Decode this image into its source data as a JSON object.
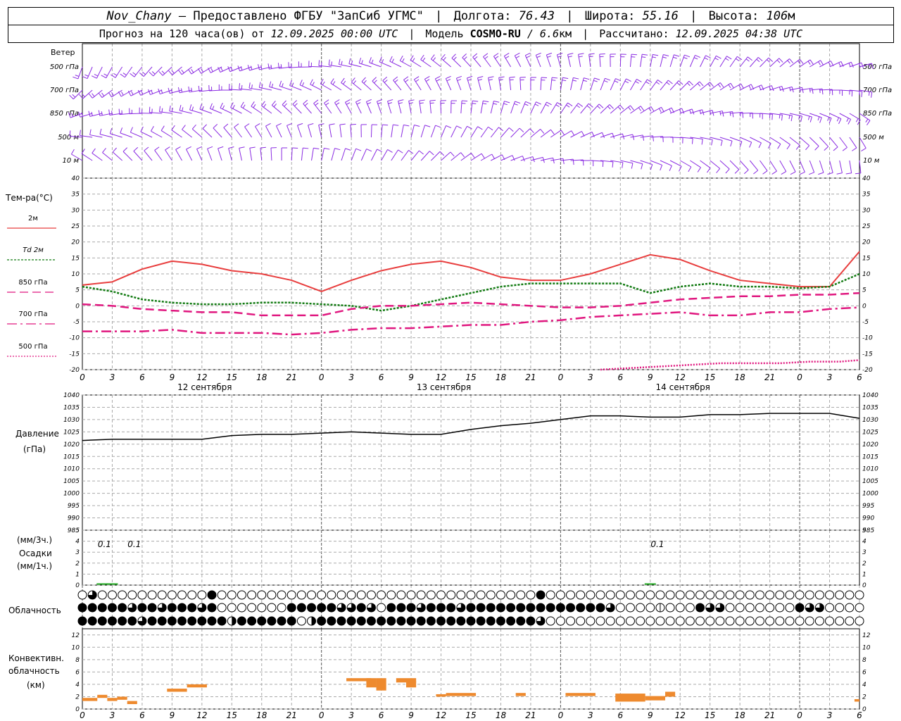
{
  "header": {
    "station": "Nov_Chany",
    "provider": "Предоставлено ФГБУ \"ЗапСиб УГМС\"",
    "lon_label": "Долгота:",
    "lon": "76.43",
    "lat_label": "Широта:",
    "lat": "55.16",
    "alt_label": "Высота:",
    "alt": "106",
    "alt_unit": "м",
    "forecast_label": "Прогноз на 120 часа(ов) от",
    "forecast_start": "12.09.2025 00:00 UTC",
    "model_label": "Модель",
    "model": "COSMO-RU",
    "model_res": "/ 6.6",
    "model_res_unit": "км",
    "computed_label": "Рассчитано:",
    "computed": "12.09.2025 04:38 UTC"
  },
  "wind_panel": {
    "title": "Ветер",
    "levels": [
      "500 гПа",
      "700 гПа",
      "850 гПа",
      "500 м",
      "10  м"
    ],
    "color": "#8a2be2"
  },
  "temp_panel": {
    "title": "Тем-ра(°C)",
    "legend": [
      {
        "label": "2м",
        "color": "#e83e3e"
      },
      {
        "label": "Td  2м",
        "color": "#117a11"
      },
      {
        "label": "850 гПа",
        "color": "#e0177f"
      },
      {
        "label": "700 гПа",
        "color": "#e0177f"
      },
      {
        "label": "500 гПа",
        "color": "#e0177f"
      }
    ],
    "yticks": [
      "40",
      "35",
      "30",
      "25",
      "20",
      "15",
      "10",
      "5",
      "0",
      "-5",
      "-10",
      "-15",
      "-20"
    ]
  },
  "time_axis": {
    "hour_labels": [
      "0",
      "3",
      "6",
      "9",
      "12",
      "15",
      "18",
      "21",
      "0",
      "3",
      "6",
      "9",
      "12",
      "15",
      "18",
      "21",
      "0",
      "3",
      "6",
      "9",
      "12",
      "15",
      "18",
      "21",
      "0",
      "3",
      "6"
    ],
    "day_labels": [
      "12 сентября",
      "13 сентября",
      "14 сентября"
    ]
  },
  "pressure_panel": {
    "title": "Давление",
    "unit": "(гПа)",
    "yticks": [
      "1040",
      "1035",
      "1030",
      "1025",
      "1020",
      "1015",
      "1010",
      "1005",
      "1000",
      "995",
      "990",
      "985"
    ]
  },
  "precip_panel": {
    "unit3": "(мм/3ч.)",
    "title": "Осадки",
    "unit1": "(мм/1ч.)",
    "yticks": [
      "5",
      "4",
      "3",
      "2",
      "1",
      "0"
    ],
    "annotations": [
      "0.1",
      "0.1",
      "0.1"
    ]
  },
  "cloud_panel": {
    "title": "Облачность"
  },
  "conv_panel": {
    "title": "Конвективн.",
    "title2": "облачность",
    "unit": "(км)",
    "yticks": [
      "12",
      "10",
      "8",
      "6",
      "4",
      "2",
      "0"
    ]
  },
  "chart_data": [
    {
      "type": "line",
      "title": "Тем-ра(°C)",
      "x_unit": "hours since forecast start",
      "ylim": [
        -20,
        40
      ],
      "series": [
        {
          "name": "2м",
          "x": [
            0,
            3,
            6,
            9,
            12,
            15,
            18,
            21,
            24,
            27,
            30,
            33,
            36,
            39,
            42,
            45,
            48,
            51,
            54,
            57,
            60,
            63,
            66,
            69,
            72,
            75,
            78
          ],
          "values": [
            6.5,
            7.5,
            11.5,
            14,
            13,
            11,
            10,
            8,
            4.5,
            8,
            11,
            13,
            14,
            12,
            9,
            8,
            8,
            10,
            13,
            16,
            14.5,
            11,
            8,
            7,
            6,
            6,
            17
          ]
        },
        {
          "name": "Td  2м",
          "x": [
            0,
            3,
            6,
            9,
            12,
            15,
            18,
            21,
            24,
            27,
            30,
            33,
            36,
            39,
            42,
            45,
            48,
            51,
            54,
            57,
            60,
            63,
            66,
            69,
            72,
            75,
            78
          ],
          "values": [
            6,
            4.5,
            2,
            1,
            0.5,
            0.5,
            1,
            1,
            0.5,
            0,
            -1.5,
            0,
            2,
            4,
            6,
            7,
            7,
            7,
            7,
            4,
            6,
            7,
            6,
            6,
            5.5,
            6,
            10
          ]
        },
        {
          "name": "850 гПа",
          "x": [
            0,
            3,
            6,
            9,
            12,
            15,
            18,
            21,
            24,
            27,
            30,
            33,
            36,
            39,
            42,
            45,
            48,
            51,
            54,
            57,
            60,
            63,
            66,
            69,
            72,
            75,
            78
          ],
          "values": [
            0.5,
            0,
            -1,
            -1.5,
            -2,
            -2,
            -3,
            -3,
            -3,
            -1,
            0,
            0,
            0.5,
            1,
            0.5,
            0,
            -0.5,
            -0.5,
            0,
            1,
            2,
            2.5,
            3,
            3,
            3.5,
            3.5,
            4
          ]
        },
        {
          "name": "700 гПа",
          "x": [
            0,
            3,
            6,
            9,
            12,
            15,
            18,
            21,
            24,
            27,
            30,
            33,
            36,
            39,
            42,
            45,
            48,
            51,
            54,
            57,
            60,
            63,
            66,
            69,
            72,
            75,
            78
          ],
          "values": [
            -8,
            -8,
            -8,
            -7.5,
            -8.5,
            -8.5,
            -8.5,
            -9,
            -8.5,
            -7.5,
            -7,
            -7,
            -6.5,
            -6,
            -6,
            -5,
            -4.5,
            -3.5,
            -3,
            -2.5,
            -2,
            -3,
            -3,
            -2,
            -2,
            -1,
            -0.5
          ]
        },
        {
          "name": "500 гПа",
          "x": [
            52,
            55,
            58,
            61,
            64,
            67,
            70,
            73,
            76,
            78
          ],
          "values": [
            -20,
            -19.5,
            -19,
            -18.5,
            -18,
            -18,
            -18,
            -17.5,
            -17.5,
            -17
          ]
        }
      ]
    },
    {
      "type": "line",
      "title": "Давление",
      "ylabel": "(гПа)",
      "ylim": [
        985,
        1040
      ],
      "series": [
        {
          "name": "",
          "x": [
            0,
            3,
            6,
            9,
            12,
            15,
            18,
            21,
            24,
            27,
            30,
            33,
            36,
            39,
            42,
            45,
            48,
            51,
            54,
            57,
            60,
            63,
            66,
            69,
            72,
            75,
            78
          ],
          "values": [
            1021.5,
            1022,
            1022,
            1022,
            1022,
            1023.5,
            1024,
            1024,
            1024.5,
            1025,
            1024.5,
            1024,
            1024,
            1026,
            1027.5,
            1028.5,
            1030,
            1031.5,
            1031.5,
            1031,
            1031,
            1032,
            1032,
            1032.5,
            1032.5,
            1032.5,
            1030.5
          ]
        }
      ]
    },
    {
      "type": "bar",
      "title": "Осадки",
      "ylabel": "(мм/3ч.)",
      "ylim": [
        0,
        5
      ],
      "x": [
        2,
        3,
        57
      ],
      "values": [
        0.1,
        0.1,
        0.1
      ],
      "labels": [
        "0.1",
        "0.1",
        "0.1"
      ]
    },
    {
      "type": "bar",
      "title": "Конвективн. облачность",
      "ylabel": "(км)",
      "ylim": [
        0,
        13
      ],
      "segments": [
        {
          "x0": 0,
          "x1": 1.5,
          "bottom": 1.3,
          "top": 1.8
        },
        {
          "x0": 1.5,
          "x1": 2.5,
          "bottom": 1.8,
          "top": 2.3
        },
        {
          "x0": 2.5,
          "x1": 3.5,
          "bottom": 1.3,
          "top": 1.8
        },
        {
          "x0": 3.5,
          "x1": 4.5,
          "bottom": 1.5,
          "top": 2
        },
        {
          "x0": 4.5,
          "x1": 5.5,
          "bottom": 0.8,
          "top": 1.3
        },
        {
          "x0": 8.5,
          "x1": 10.5,
          "bottom": 2.8,
          "top": 3.3
        },
        {
          "x0": 10.5,
          "x1": 12.5,
          "bottom": 3.5,
          "top": 4
        },
        {
          "x0": 26.5,
          "x1": 29,
          "bottom": 4.5,
          "top": 5
        },
        {
          "x0": 28.5,
          "x1": 29.5,
          "bottom": 3.5,
          "top": 5
        },
        {
          "x0": 29.5,
          "x1": 30.5,
          "bottom": 3,
          "top": 5
        },
        {
          "x0": 31.5,
          "x1": 33.5,
          "bottom": 4.3,
          "top": 5
        },
        {
          "x0": 32.5,
          "x1": 33.5,
          "bottom": 3.5,
          "top": 4.5
        },
        {
          "x0": 35.5,
          "x1": 36.5,
          "bottom": 2,
          "top": 2.4
        },
        {
          "x0": 36.5,
          "x1": 39.5,
          "bottom": 2.1,
          "top": 2.6
        },
        {
          "x0": 43.5,
          "x1": 44.5,
          "bottom": 2.1,
          "top": 2.6
        },
        {
          "x0": 48.5,
          "x1": 51.5,
          "bottom": 2.1,
          "top": 2.6
        },
        {
          "x0": 53.5,
          "x1": 56.5,
          "bottom": 1.2,
          "top": 2.5
        },
        {
          "x0": 56.5,
          "x1": 58.5,
          "bottom": 1.4,
          "top": 2.1
        },
        {
          "x0": 58.5,
          "x1": 59.5,
          "bottom": 2,
          "top": 2.8
        },
        {
          "x0": 77.5,
          "x1": 78,
          "bottom": 1.2,
          "top": 1.6
        }
      ]
    },
    {
      "type": "table",
      "title": "Облачность",
      "rows": [
        "upper",
        "middle",
        "lower"
      ],
      "note": "octa cover 0-8 per hour",
      "upper": "ABBAAAAAAAAAAAAAAAAAAAAAAAACBAAAAAAAAAAAAAAAAAAAAAAAAAAAAAAAAAAAAAAAAAAAAAAAAAAAAAAAAAAAAAAAAAAAAACBAAAAAAAAAAAAAAAAAAAAAAAAAAAAAAAAAAAAAAAAAAAAAAAAAAAAAAAAAAAAAAAAAAAAA",
      "middle": "8888858885888858000000008888885858508888588885888888888888888865000001000856500000000858500000",
      "lower": "888888568888888883888888800488888888888888888888888888500000000000000000000000000000000000000"
    }
  ]
}
